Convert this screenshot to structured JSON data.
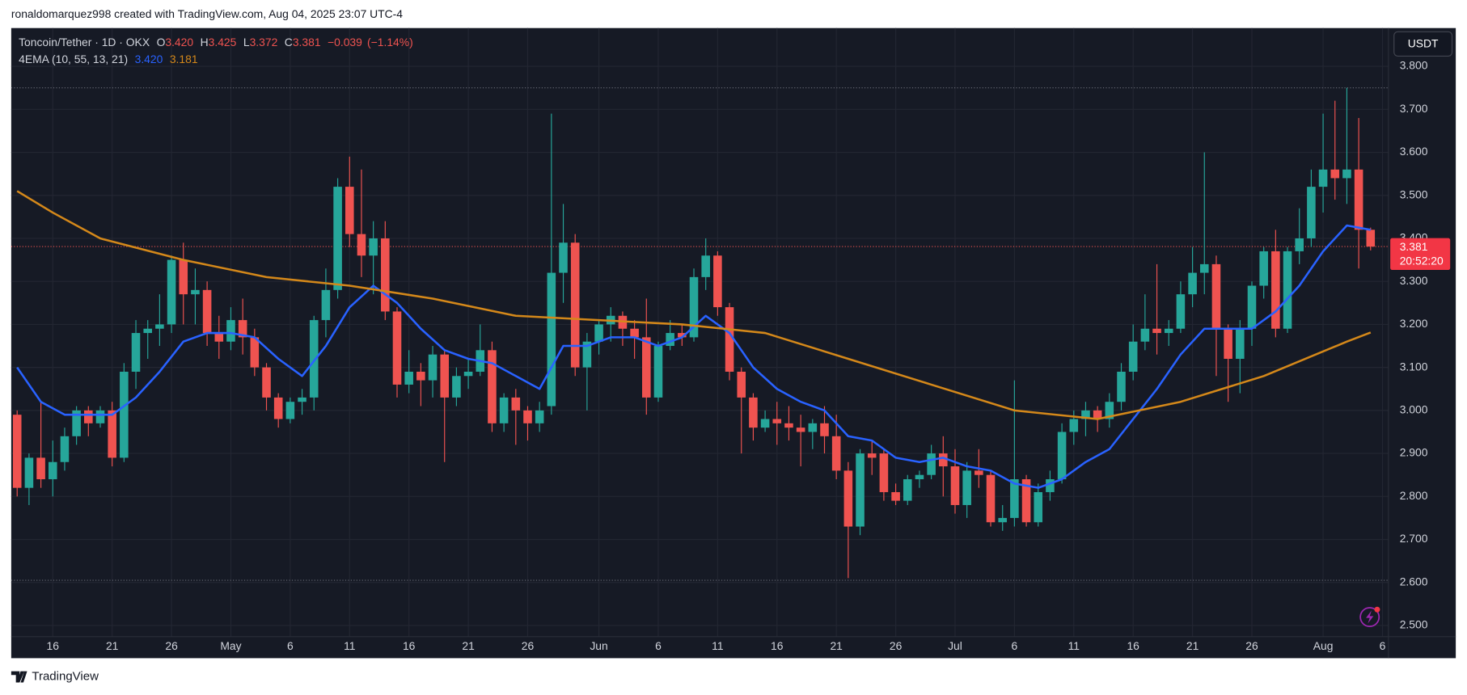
{
  "header": "ronaldomarquez998 created with TradingView.com, Aug 04, 2025 23:07 UTC-4",
  "footer": "TradingView",
  "chart_data": {
    "type": "candlestick",
    "legend": {
      "symbol": "Toncoin/Tether · 1D · OKX",
      "fields": [
        {
          "key": "O",
          "value": "3.420"
        },
        {
          "key": "H",
          "value": "3.425"
        },
        {
          "key": "L",
          "value": "3.372"
        },
        {
          "key": "C",
          "value": "3.381"
        }
      ],
      "change": "−0.039",
      "change_pct": "(−1.14%)"
    },
    "indicator_label": "4EMA (10, 55, 13, 21)",
    "currency": "USDT",
    "last_price_label": "3.381",
    "countdown": "20:52:20",
    "colors": {
      "up": "#26a69a",
      "down": "#ef5350"
    },
    "categories": [
      "Apr 13",
      "Apr 14",
      "Apr 15",
      "Apr 16",
      "Apr 17",
      "Apr 18",
      "Apr 19",
      "Apr 20",
      "Apr 21",
      "Apr 22",
      "Apr 23",
      "Apr 24",
      "Apr 25",
      "Apr 26",
      "Apr 27",
      "Apr 28",
      "Apr 29",
      "Apr 30",
      "May 1",
      "May 2",
      "May 3",
      "May 4",
      "May 5",
      "May 6",
      "May 7",
      "May 8",
      "May 9",
      "May 10",
      "May 11",
      "May 12",
      "May 13",
      "May 14",
      "May 15",
      "May 16",
      "May 17",
      "May 18",
      "May 19",
      "May 20",
      "May 21",
      "May 22",
      "May 23",
      "May 24",
      "May 25",
      "May 26",
      "May 27",
      "May 28",
      "May 29",
      "May 30",
      "May 31",
      "Jun 1",
      "Jun 2",
      "Jun 3",
      "Jun 4",
      "Jun 5",
      "Jun 6",
      "Jun 7",
      "Jun 8",
      "Jun 9",
      "Jun 10",
      "Jun 11",
      "Jun 12",
      "Jun 13",
      "Jun 14",
      "Jun 15",
      "Jun 16",
      "Jun 17",
      "Jun 18",
      "Jun 19",
      "Jun 20",
      "Jun 21",
      "Jun 22",
      "Jun 23",
      "Jun 24",
      "Jun 25",
      "Jun 26",
      "Jun 27",
      "Jun 28",
      "Jun 29",
      "Jun 30",
      "Jul 1",
      "Jul 2",
      "Jul 3",
      "Jul 4",
      "Jul 5",
      "Jul 6",
      "Jul 7",
      "Jul 8",
      "Jul 9",
      "Jul 10",
      "Jul 11",
      "Jul 12",
      "Jul 13",
      "Jul 14",
      "Jul 15",
      "Jul 16",
      "Jul 17",
      "Jul 18",
      "Jul 19",
      "Jul 20",
      "Jul 21",
      "Jul 22",
      "Jul 23",
      "Jul 24",
      "Jul 25",
      "Jul 26",
      "Jul 27",
      "Jul 28",
      "Jul 29",
      "Jul 30",
      "Jul 31",
      "Aug 1",
      "Aug 2",
      "Aug 3",
      "Aug 4",
      "Aug 5"
    ],
    "open": [
      2.99,
      2.82,
      2.89,
      2.84,
      2.88,
      2.94,
      3.0,
      2.97,
      3.0,
      2.89,
      3.09,
      3.18,
      3.19,
      3.2,
      3.35,
      3.27,
      3.28,
      3.18,
      3.16,
      3.21,
      3.17,
      3.1,
      3.03,
      2.98,
      3.02,
      3.03,
      3.21,
      3.28,
      3.52,
      3.41,
      3.36,
      3.4,
      3.23,
      3.06,
      3.09,
      3.07,
      3.13,
      3.03,
      3.08,
      3.09,
      3.14,
      2.97,
      3.03,
      3.0,
      2.97,
      3.01,
      3.32,
      3.39,
      3.1,
      3.16,
      3.2,
      3.22,
      3.19,
      3.17,
      3.03,
      3.15,
      3.18,
      3.17,
      3.31,
      3.36,
      3.24,
      3.09,
      3.03,
      2.96,
      2.98,
      2.97,
      2.96,
      2.95,
      2.97,
      2.94,
      2.86,
      2.73,
      2.9,
      2.9,
      2.81,
      2.79,
      2.84,
      2.85,
      2.9,
      2.87,
      2.78,
      2.86,
      2.85,
      2.74,
      2.75,
      2.84,
      2.74,
      2.81,
      2.84,
      2.95,
      2.98,
      3.0,
      2.98,
      3.02,
      3.09,
      3.16,
      3.19,
      3.18,
      3.19,
      3.27,
      3.32,
      3.34,
      3.19,
      3.12,
      3.19,
      3.29,
      3.37,
      3.19,
      3.37,
      3.4,
      3.52,
      3.56,
      3.54,
      3.56,
      3.42
    ],
    "high": [
      3.0,
      2.9,
      3.02,
      2.93,
      2.96,
      3.01,
      3.01,
      3.01,
      3.02,
      3.11,
      3.21,
      3.21,
      3.27,
      3.36,
      3.39,
      3.33,
      3.3,
      3.22,
      3.24,
      3.26,
      3.19,
      3.11,
      3.04,
      3.03,
      3.05,
      3.22,
      3.33,
      3.54,
      3.59,
      3.56,
      3.44,
      3.44,
      3.24,
      3.14,
      3.11,
      3.15,
      3.14,
      3.1,
      3.12,
      3.2,
      3.16,
      3.04,
      3.05,
      3.01,
      3.02,
      3.69,
      3.48,
      3.41,
      3.18,
      3.21,
      3.24,
      3.23,
      3.21,
      3.26,
      3.16,
      3.21,
      3.2,
      3.33,
      3.4,
      3.37,
      3.25,
      3.1,
      3.04,
      3.0,
      3.02,
      3.01,
      2.99,
      2.98,
      3.01,
      2.99,
      2.88,
      2.91,
      2.93,
      2.91,
      2.83,
      2.85,
      2.86,
      2.92,
      2.94,
      2.91,
      2.88,
      2.91,
      2.86,
      2.78,
      3.07,
      2.85,
      2.83,
      2.86,
      2.97,
      3.0,
      3.02,
      3.01,
      3.04,
      3.11,
      3.2,
      3.27,
      3.34,
      3.21,
      3.3,
      3.38,
      3.6,
      3.36,
      3.2,
      3.21,
      3.3,
      3.38,
      3.42,
      3.38,
      3.47,
      3.56,
      3.69,
      3.72,
      3.75,
      3.68,
      3.425
    ],
    "low": [
      2.8,
      2.78,
      2.82,
      2.8,
      2.86,
      2.92,
      2.94,
      2.96,
      2.87,
      2.88,
      3.05,
      3.12,
      3.15,
      3.18,
      3.2,
      3.2,
      3.15,
      3.12,
      3.14,
      3.13,
      3.08,
      3.0,
      2.96,
      2.97,
      2.99,
      3.0,
      3.17,
      3.26,
      3.38,
      3.31,
      3.27,
      3.21,
      3.03,
      3.04,
      3.01,
      3.03,
      2.88,
      3.01,
      3.05,
      3.08,
      2.95,
      2.95,
      2.92,
      2.93,
      2.95,
      2.99,
      3.25,
      3.08,
      3.0,
      3.13,
      3.16,
      3.15,
      3.12,
      2.99,
      3.02,
      3.14,
      3.15,
      3.16,
      3.28,
      3.22,
      3.07,
      2.9,
      2.93,
      2.95,
      2.92,
      2.93,
      2.87,
      2.91,
      2.9,
      2.84,
      2.61,
      2.71,
      2.85,
      2.79,
      2.78,
      2.78,
      2.82,
      2.84,
      2.8,
      2.76,
      2.75,
      2.82,
      2.73,
      2.72,
      2.73,
      2.73,
      2.73,
      2.79,
      2.83,
      2.92,
      2.94,
      2.95,
      2.96,
      3.0,
      3.07,
      3.14,
      3.13,
      3.15,
      3.18,
      3.24,
      3.27,
      3.08,
      3.02,
      3.04,
      3.15,
      3.26,
      3.17,
      3.18,
      3.34,
      3.38,
      3.46,
      3.49,
      3.48,
      3.33,
      3.372
    ],
    "close": [
      2.82,
      2.89,
      2.84,
      2.88,
      2.94,
      3.0,
      2.97,
      3.0,
      2.89,
      3.09,
      3.18,
      3.19,
      3.2,
      3.35,
      3.27,
      3.28,
      3.18,
      3.16,
      3.21,
      3.17,
      3.1,
      3.03,
      2.98,
      3.02,
      3.03,
      3.21,
      3.28,
      3.52,
      3.41,
      3.36,
      3.4,
      3.23,
      3.06,
      3.09,
      3.07,
      3.13,
      3.03,
      3.08,
      3.09,
      3.14,
      2.97,
      3.03,
      3.0,
      2.97,
      3.0,
      3.32,
      3.39,
      3.1,
      3.16,
      3.2,
      3.22,
      3.19,
      3.17,
      3.03,
      3.15,
      3.18,
      3.17,
      3.31,
      3.36,
      3.24,
      3.09,
      3.03,
      2.96,
      2.98,
      2.97,
      2.96,
      2.95,
      2.97,
      2.94,
      2.86,
      2.73,
      2.9,
      2.89,
      2.81,
      2.79,
      2.84,
      2.85,
      2.9,
      2.87,
      2.78,
      2.86,
      2.85,
      2.74,
      2.75,
      2.84,
      2.74,
      2.81,
      2.84,
      2.95,
      2.98,
      3.0,
      2.98,
      3.02,
      3.09,
      3.16,
      3.19,
      3.18,
      3.19,
      3.27,
      3.32,
      3.34,
      3.19,
      3.12,
      3.19,
      3.29,
      3.37,
      3.19,
      3.37,
      3.4,
      3.52,
      3.56,
      3.54,
      3.56,
      3.42,
      3.381
    ],
    "series": [
      {
        "color": "#2962ff",
        "value_label": "3.420",
        "x": [
          "Apr 13",
          "Apr 15",
          "Apr 17",
          "Apr 19",
          "Apr 21",
          "Apr 23",
          "Apr 25",
          "Apr 27",
          "Apr 29",
          "May 1",
          "May 3",
          "May 5",
          "May 7",
          "May 9",
          "May 11",
          "May 13",
          "May 15",
          "May 17",
          "May 19",
          "May 21",
          "May 23",
          "May 25",
          "May 27",
          "May 29",
          "May 31",
          "Jun 2",
          "Jun 4",
          "Jun 6",
          "Jun 8",
          "Jun 10",
          "Jun 12",
          "Jun 14",
          "Jun 16",
          "Jun 18",
          "Jun 20",
          "Jun 22",
          "Jun 24",
          "Jun 26",
          "Jun 28",
          "Jun 30",
          "Jul 2",
          "Jul 4",
          "Jul 6",
          "Jul 8",
          "Jul 10",
          "Jul 12",
          "Jul 14",
          "Jul 16",
          "Jul 18",
          "Jul 20",
          "Jul 22",
          "Jul 24",
          "Jul 26",
          "Jul 28",
          "Jul 30",
          "Aug 1",
          "Aug 3",
          "Aug 5"
        ],
        "values": [
          3.1,
          3.02,
          2.99,
          2.99,
          2.99,
          3.03,
          3.09,
          3.16,
          3.18,
          3.18,
          3.17,
          3.12,
          3.08,
          3.15,
          3.24,
          3.29,
          3.25,
          3.19,
          3.14,
          3.12,
          3.11,
          3.08,
          3.05,
          3.15,
          3.15,
          3.17,
          3.17,
          3.15,
          3.17,
          3.22,
          3.18,
          3.1,
          3.05,
          3.02,
          3.0,
          2.94,
          2.93,
          2.89,
          2.88,
          2.89,
          2.87,
          2.86,
          2.83,
          2.82,
          2.84,
          2.88,
          2.91,
          2.98,
          3.05,
          3.13,
          3.19,
          3.19,
          3.19,
          3.23,
          3.29,
          3.37,
          3.43,
          3.42
        ]
      },
      {
        "color": "#d4881a",
        "value_label": "3.181",
        "x": [
          "Apr 13",
          "Apr 16",
          "Apr 20",
          "Apr 27",
          "May 4",
          "May 11",
          "May 18",
          "May 25",
          "Jun 1",
          "Jun 8",
          "Jun 15",
          "Jun 22",
          "Jun 29",
          "Jul 6",
          "Jul 13",
          "Jul 20",
          "Jul 27",
          "Aug 3",
          "Aug 5"
        ],
        "values": [
          3.51,
          3.46,
          3.4,
          3.35,
          3.31,
          3.29,
          3.26,
          3.22,
          3.21,
          3.2,
          3.18,
          3.12,
          3.06,
          3.0,
          2.98,
          3.02,
          3.08,
          3.16,
          3.181
        ]
      }
    ],
    "range_lines": [
      3.75,
      2.605
    ],
    "xlim": [
      "Apr 13",
      "Aug 7"
    ],
    "xticks": [
      {
        "value": "Apr 16",
        "label": "16"
      },
      {
        "value": "Apr 21",
        "label": "21"
      },
      {
        "value": "Apr 26",
        "label": "26"
      },
      {
        "value": "May 1",
        "label": "May"
      },
      {
        "value": "May 6",
        "label": "6"
      },
      {
        "value": "May 11",
        "label": "11"
      },
      {
        "value": "May 16",
        "label": "16"
      },
      {
        "value": "May 21",
        "label": "21"
      },
      {
        "value": "May 26",
        "label": "26"
      },
      {
        "value": "Jun 1",
        "label": "Jun"
      },
      {
        "value": "Jun 6",
        "label": "6"
      },
      {
        "value": "Jun 11",
        "label": "11"
      },
      {
        "value": "Jun 16",
        "label": "16"
      },
      {
        "value": "Jun 21",
        "label": "21"
      },
      {
        "value": "Jun 26",
        "label": "26"
      },
      {
        "value": "Jul 1",
        "label": "Jul"
      },
      {
        "value": "Jul 6",
        "label": "6"
      },
      {
        "value": "Jul 11",
        "label": "11"
      },
      {
        "value": "Jul 16",
        "label": "16"
      },
      {
        "value": "Jul 21",
        "label": "21"
      },
      {
        "value": "Jul 26",
        "label": "26"
      },
      {
        "value": "Aug 1",
        "label": "Aug"
      },
      {
        "value": "Aug 6",
        "label": "6"
      }
    ],
    "ylim": [
      2.474,
      3.889
    ],
    "yticks": [
      {
        "value": 2.5,
        "label": "2.500"
      },
      {
        "value": 2.6,
        "label": "2.600"
      },
      {
        "value": 2.7,
        "label": "2.700"
      },
      {
        "value": 2.8,
        "label": "2.800"
      },
      {
        "value": 2.9,
        "label": "2.900"
      },
      {
        "value": 3.0,
        "label": "3.000"
      },
      {
        "value": 3.1,
        "label": "3.100"
      },
      {
        "value": 3.2,
        "label": "3.200"
      },
      {
        "value": 3.3,
        "label": "3.300"
      },
      {
        "value": 3.4,
        "label": "3.400"
      },
      {
        "value": 3.5,
        "label": "3.500"
      },
      {
        "value": 3.6,
        "label": "3.600"
      },
      {
        "value": 3.7,
        "label": "3.700"
      },
      {
        "value": 3.8,
        "label": "3.800"
      }
    ],
    "grid": true
  }
}
